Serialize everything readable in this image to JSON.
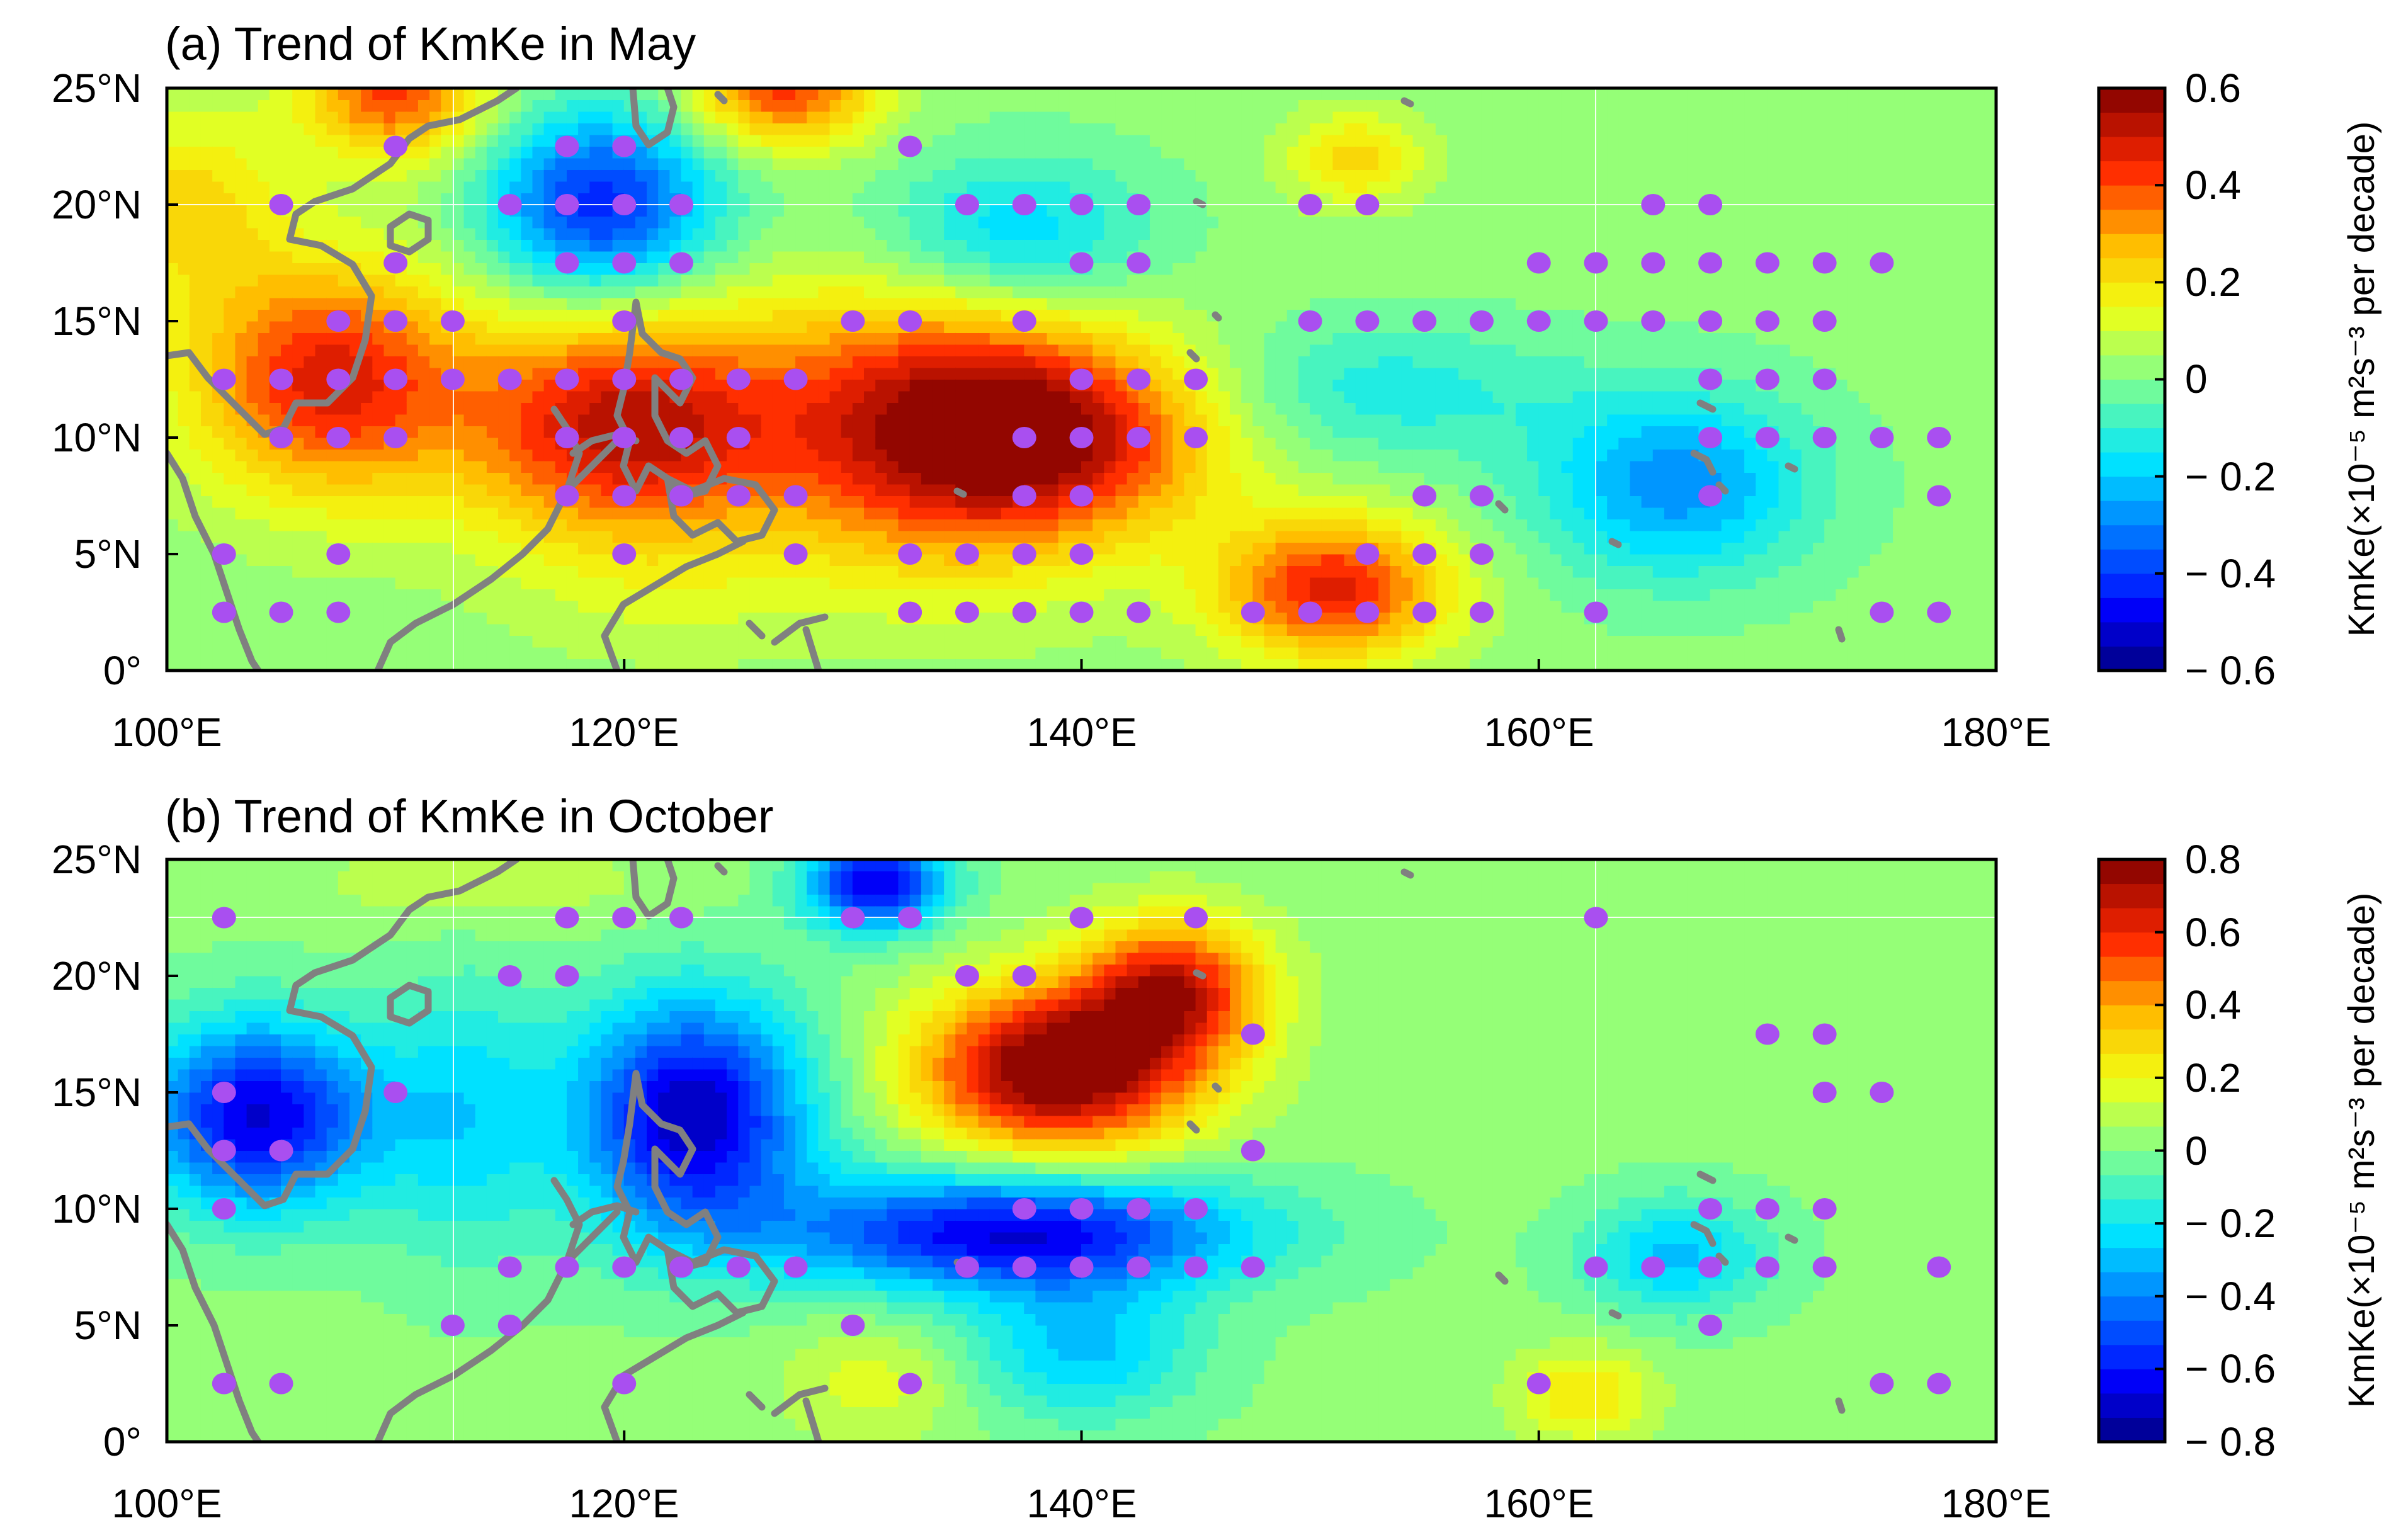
{
  "chart_data": [
    {
      "type": "heatmap",
      "panel": "a",
      "title": "(a) Trend of KmKe in May",
      "x_tick_labels": [
        "100°E",
        "120°E",
        "140°E",
        "160°E",
        "180°E"
      ],
      "x_ticks": [
        100,
        120,
        140,
        160,
        180
      ],
      "y_tick_labels": [
        "0°",
        "5°N",
        "10°N",
        "15°N",
        "20°N",
        "25°N"
      ],
      "y_ticks": [
        0,
        5,
        10,
        15,
        20,
        25
      ],
      "xlim": [
        100,
        180
      ],
      "ylim": [
        0,
        25
      ],
      "colorbar": {
        "label": "KmKe(×10⁻⁵ m²s⁻³ per decade)",
        "range": [
          -0.6,
          0.6
        ],
        "tick_labels": [
          "0.6",
          "0.4",
          "0.2",
          "0",
          "− 0.2",
          "− 0.4",
          "− 0.6"
        ],
        "ticks": [
          0.6,
          0.4,
          0.2,
          0,
          -0.2,
          -0.4,
          -0.6
        ]
      },
      "field_anomalies": [
        {
          "lon": 107,
          "lat": 12.5,
          "value": 0.45,
          "rx": 6,
          "ry": 5
        },
        {
          "lon": 120,
          "lat": 10.5,
          "value": 0.5,
          "rx": 7,
          "ry": 5
        },
        {
          "lon": 134,
          "lat": 10.5,
          "value": 0.5,
          "rx": 8,
          "ry": 6
        },
        {
          "lon": 140,
          "lat": 10,
          "value": 0.3,
          "rx": 7,
          "ry": 4
        },
        {
          "lon": 151,
          "lat": 3.5,
          "value": 0.45,
          "rx": 5,
          "ry": 3
        },
        {
          "lon": 110,
          "lat": 25,
          "value": 0.4,
          "rx": 4,
          "ry": 3
        },
        {
          "lon": 127,
          "lat": 25,
          "value": 0.4,
          "rx": 4,
          "ry": 2.5
        },
        {
          "lon": 119,
          "lat": 20,
          "value": -0.45,
          "rx": 5,
          "ry": 4
        },
        {
          "lon": 137,
          "lat": 18.5,
          "value": -0.25,
          "rx": 6,
          "ry": 3.5
        },
        {
          "lon": 166,
          "lat": 8,
          "value": -0.3,
          "rx": 6,
          "ry": 4
        },
        {
          "lon": 153,
          "lat": 12,
          "value": -0.15,
          "rx": 8,
          "ry": 3
        },
        {
          "lon": 101,
          "lat": 20,
          "value": 0.2,
          "rx": 4,
          "ry": 4
        },
        {
          "lon": 152,
          "lat": 22,
          "value": 0.2,
          "rx": 3,
          "ry": 2
        },
        {
          "lon": 122,
          "lat": 3,
          "value": 0.05,
          "rx": 7,
          "ry": 3
        }
      ],
      "significant_points": [
        [
          110,
          22.5
        ],
        [
          117.5,
          22.5
        ],
        [
          120,
          22.5
        ],
        [
          132.5,
          22.5
        ],
        [
          105,
          20
        ],
        [
          115,
          20
        ],
        [
          117.5,
          20
        ],
        [
          120,
          20
        ],
        [
          122.5,
          20
        ],
        [
          135,
          20
        ],
        [
          137.5,
          20
        ],
        [
          140,
          20
        ],
        [
          142.5,
          20
        ],
        [
          150,
          20
        ],
        [
          152.5,
          20
        ],
        [
          165,
          20
        ],
        [
          167.5,
          20
        ],
        [
          110,
          17.5
        ],
        [
          117.5,
          17.5
        ],
        [
          120,
          17.5
        ],
        [
          122.5,
          17.5
        ],
        [
          140,
          17.5
        ],
        [
          142.5,
          17.5
        ],
        [
          160,
          17.5
        ],
        [
          162.5,
          17.5
        ],
        [
          165,
          17.5
        ],
        [
          167.5,
          17.5
        ],
        [
          170,
          17.5
        ],
        [
          172.5,
          17.5
        ],
        [
          175,
          17.5
        ],
        [
          107.5,
          15
        ],
        [
          110,
          15
        ],
        [
          112.5,
          15
        ],
        [
          120,
          15
        ],
        [
          130,
          15
        ],
        [
          132.5,
          15
        ],
        [
          137.5,
          15
        ],
        [
          150,
          15
        ],
        [
          152.5,
          15
        ],
        [
          155,
          15
        ],
        [
          157.5,
          15
        ],
        [
          160,
          15
        ],
        [
          162.5,
          15
        ],
        [
          165,
          15
        ],
        [
          167.5,
          15
        ],
        [
          170,
          15
        ],
        [
          172.5,
          15
        ],
        [
          102.5,
          12.5
        ],
        [
          105,
          12.5
        ],
        [
          107.5,
          12.5
        ],
        [
          110,
          12.5
        ],
        [
          112.5,
          12.5
        ],
        [
          115,
          12.5
        ],
        [
          117.5,
          12.5
        ],
        [
          120,
          12.5
        ],
        [
          122.5,
          12.5
        ],
        [
          125,
          12.5
        ],
        [
          127.5,
          12.5
        ],
        [
          140,
          12.5
        ],
        [
          142.5,
          12.5
        ],
        [
          145,
          12.5
        ],
        [
          167.5,
          12.5
        ],
        [
          170,
          12.5
        ],
        [
          172.5,
          12.5
        ],
        [
          105,
          10
        ],
        [
          107.5,
          10
        ],
        [
          110,
          10
        ],
        [
          117.5,
          10
        ],
        [
          120,
          10
        ],
        [
          122.5,
          10
        ],
        [
          125,
          10
        ],
        [
          137.5,
          10
        ],
        [
          140,
          10
        ],
        [
          142.5,
          10
        ],
        [
          145,
          10
        ],
        [
          167.5,
          10
        ],
        [
          170,
          10
        ],
        [
          172.5,
          10
        ],
        [
          175,
          10
        ],
        [
          177.5,
          10
        ],
        [
          117.5,
          7.5
        ],
        [
          120,
          7.5
        ],
        [
          122.5,
          7.5
        ],
        [
          125,
          7.5
        ],
        [
          127.5,
          7.5
        ],
        [
          137.5,
          7.5
        ],
        [
          140,
          7.5
        ],
        [
          155,
          7.5
        ],
        [
          157.5,
          7.5
        ],
        [
          167.5,
          7.5
        ],
        [
          177.5,
          7.5
        ],
        [
          102.5,
          5
        ],
        [
          107.5,
          5
        ],
        [
          120,
          5
        ],
        [
          127.5,
          5
        ],
        [
          132.5,
          5
        ],
        [
          135,
          5
        ],
        [
          137.5,
          5
        ],
        [
          140,
          5
        ],
        [
          152.5,
          5
        ],
        [
          155,
          5
        ],
        [
          157.5,
          5
        ],
        [
          102.5,
          2.5
        ],
        [
          105,
          2.5
        ],
        [
          107.5,
          2.5
        ],
        [
          132.5,
          2.5
        ],
        [
          135,
          2.5
        ],
        [
          137.5,
          2.5
        ],
        [
          140,
          2.5
        ],
        [
          142.5,
          2.5
        ],
        [
          147.5,
          2.5
        ],
        [
          150,
          2.5
        ],
        [
          152.5,
          2.5
        ],
        [
          155,
          2.5
        ],
        [
          157.5,
          2.5
        ],
        [
          162.5,
          2.5
        ],
        [
          175,
          2.5
        ],
        [
          177.5,
          2.5
        ]
      ]
    },
    {
      "type": "heatmap",
      "panel": "b",
      "title": "(b) Trend of KmKe in October",
      "x_tick_labels": [
        "100°E",
        "120°E",
        "140°E",
        "160°E",
        "180°E"
      ],
      "x_ticks": [
        100,
        120,
        140,
        160,
        180
      ],
      "y_tick_labels": [
        "0°",
        "5°N",
        "10°N",
        "15°N",
        "20°N",
        "25°N"
      ],
      "y_ticks": [
        0,
        5,
        10,
        15,
        20,
        25
      ],
      "xlim": [
        100,
        180
      ],
      "ylim": [
        0,
        25
      ],
      "colorbar": {
        "label": "KmKe(×10⁻⁵ m²s⁻³ per decade)",
        "range": [
          -0.8,
          0.8
        ],
        "tick_labels": [
          "0.8",
          "0.6",
          "0.4",
          "0.2",
          "0",
          "− 0.2",
          "− 0.4",
          "− 0.6",
          "− 0.8"
        ],
        "ticks": [
          0.8,
          0.6,
          0.4,
          0.2,
          0,
          -0.2,
          -0.4,
          -0.6,
          -0.8
        ]
      },
      "field_anomalies": [
        {
          "lon": 139,
          "lat": 16,
          "value": 0.85,
          "rx": 6,
          "ry": 3.5
        },
        {
          "lon": 144,
          "lat": 19.5,
          "value": 0.6,
          "rx": 4,
          "ry": 3
        },
        {
          "lon": 104,
          "lat": 14,
          "value": -0.7,
          "rx": 5,
          "ry": 4
        },
        {
          "lon": 123,
          "lat": 14,
          "value": -0.75,
          "rx": 5,
          "ry": 5
        },
        {
          "lon": 137,
          "lat": 9,
          "value": -0.7,
          "rx": 10,
          "ry": 2.5
        },
        {
          "lon": 131,
          "lat": 24,
          "value": -0.7,
          "rx": 3,
          "ry": 2
        },
        {
          "lon": 166,
          "lat": 8,
          "value": -0.3,
          "rx": 4,
          "ry": 2.5
        },
        {
          "lon": 113,
          "lat": 14,
          "value": -0.25,
          "rx": 4,
          "ry": 6
        },
        {
          "lon": 140,
          "lat": 4,
          "value": -0.3,
          "rx": 5,
          "ry": 3
        },
        {
          "lon": 162,
          "lat": 2,
          "value": 0.25,
          "rx": 3,
          "ry": 2
        },
        {
          "lon": 131,
          "lat": 2.5,
          "value": 0.15,
          "rx": 4,
          "ry": 2.5
        },
        {
          "lon": 114,
          "lat": 24,
          "value": 0.1,
          "rx": 8,
          "ry": 2
        }
      ],
      "significant_points": [
        [
          102.5,
          22.5
        ],
        [
          117.5,
          22.5
        ],
        [
          120,
          22.5
        ],
        [
          122.5,
          22.5
        ],
        [
          130,
          22.5
        ],
        [
          132.5,
          22.5
        ],
        [
          140,
          22.5
        ],
        [
          145,
          22.5
        ],
        [
          162.5,
          22.5
        ],
        [
          115,
          20
        ],
        [
          117.5,
          20
        ],
        [
          135,
          20
        ],
        [
          137.5,
          20
        ],
        [
          147.5,
          17.5
        ],
        [
          170,
          17.5
        ],
        [
          172.5,
          17.5
        ],
        [
          102.5,
          15
        ],
        [
          110,
          15
        ],
        [
          172.5,
          15
        ],
        [
          175,
          15
        ],
        [
          102.5,
          12.5
        ],
        [
          105,
          12.5
        ],
        [
          147.5,
          12.5
        ],
        [
          102.5,
          10
        ],
        [
          137.5,
          10
        ],
        [
          140,
          10
        ],
        [
          142.5,
          10
        ],
        [
          145,
          10
        ],
        [
          167.5,
          10
        ],
        [
          170,
          10
        ],
        [
          172.5,
          10
        ],
        [
          115,
          7.5
        ],
        [
          117.5,
          7.5
        ],
        [
          120,
          7.5
        ],
        [
          122.5,
          7.5
        ],
        [
          125,
          7.5
        ],
        [
          127.5,
          7.5
        ],
        [
          135,
          7.5
        ],
        [
          137.5,
          7.5
        ],
        [
          140,
          7.5
        ],
        [
          142.5,
          7.5
        ],
        [
          145,
          7.5
        ],
        [
          147.5,
          7.5
        ],
        [
          162.5,
          7.5
        ],
        [
          165,
          7.5
        ],
        [
          167.5,
          7.5
        ],
        [
          170,
          7.5
        ],
        [
          172.5,
          7.5
        ],
        [
          177.5,
          7.5
        ],
        [
          112.5,
          5
        ],
        [
          115,
          5
        ],
        [
          130,
          5
        ],
        [
          167.5,
          5
        ],
        [
          102.5,
          2.5
        ],
        [
          105,
          2.5
        ],
        [
          120,
          2.5
        ],
        [
          132.5,
          2.5
        ],
        [
          160,
          2.5
        ],
        [
          175,
          2.5
        ],
        [
          177.5,
          2.5
        ]
      ]
    }
  ]
}
